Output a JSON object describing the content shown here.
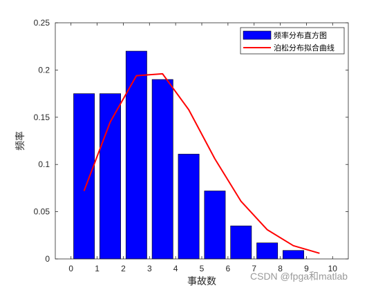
{
  "chart_data": {
    "type": "bar",
    "xlabel": "事故数",
    "ylabel": "频率",
    "xlim": [
      -0.6,
      10.6
    ],
    "ylim": [
      0,
      0.25
    ],
    "xticks": [
      0,
      1,
      2,
      3,
      4,
      5,
      6,
      7,
      8,
      9,
      10
    ],
    "yticks": [
      0,
      0.05,
      0.1,
      0.15,
      0.2,
      0.25
    ],
    "ytick_labels": [
      "0",
      "0.05",
      "0.1",
      "0.15",
      "0.2",
      "0.25"
    ],
    "bar_series": {
      "name": "频率分布直方图",
      "color": "#0000ff",
      "x": [
        0.5,
        1.5,
        2.5,
        3.5,
        4.5,
        5.5,
        6.5,
        7.5,
        8.5,
        9.5
      ],
      "values": [
        0.175,
        0.175,
        0.22,
        0.19,
        0.111,
        0.072,
        0.035,
        0.017,
        0.009,
        0.0
      ]
    },
    "line_series": {
      "name": "泊松分布拟合曲线",
      "color": "#ff0000",
      "x": [
        0.5,
        1.5,
        2.5,
        3.5,
        4.5,
        5.5,
        6.5,
        7.5,
        8.5,
        9.5
      ],
      "values": [
        0.072,
        0.145,
        0.194,
        0.196,
        0.158,
        0.106,
        0.061,
        0.031,
        0.014,
        0.006
      ]
    },
    "legend_position": "top-right"
  },
  "watermark": "CSDN @fpga和matlab"
}
